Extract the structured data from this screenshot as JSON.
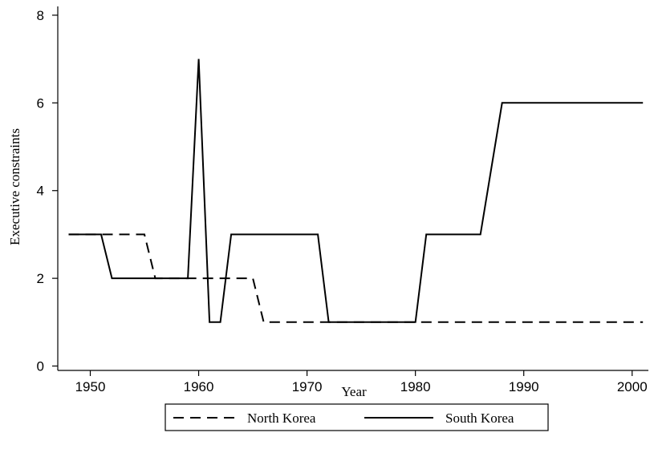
{
  "chart_data": {
    "type": "line",
    "xlabel": "Year",
    "ylabel": "Executive constraints",
    "xlim": [
      1947,
      2001.5
    ],
    "ylim": [
      -0.1,
      8.2
    ],
    "xticks": [
      1950,
      1960,
      1970,
      1980,
      1990,
      2000
    ],
    "yticks": [
      0,
      2,
      4,
      6,
      8
    ],
    "grid": false,
    "legend": "bottom",
    "series": [
      {
        "name": "North Korea",
        "style": "dashed",
        "color": "#000000",
        "x": [
          1948,
          1955,
          1956,
          1965,
          1966,
          2001
        ],
        "y": [
          3,
          3,
          2,
          2,
          1,
          1
        ]
      },
      {
        "name": "South Korea",
        "style": "solid",
        "color": "#000000",
        "x": [
          1948,
          1951,
          1952,
          1959,
          1960,
          1961,
          1962,
          1963,
          1971,
          1972,
          1980,
          1981,
          1986,
          1988,
          2001
        ],
        "y": [
          3,
          3,
          2,
          2,
          7,
          1,
          1,
          3,
          3,
          1,
          1,
          3,
          3,
          6,
          6
        ]
      }
    ]
  }
}
